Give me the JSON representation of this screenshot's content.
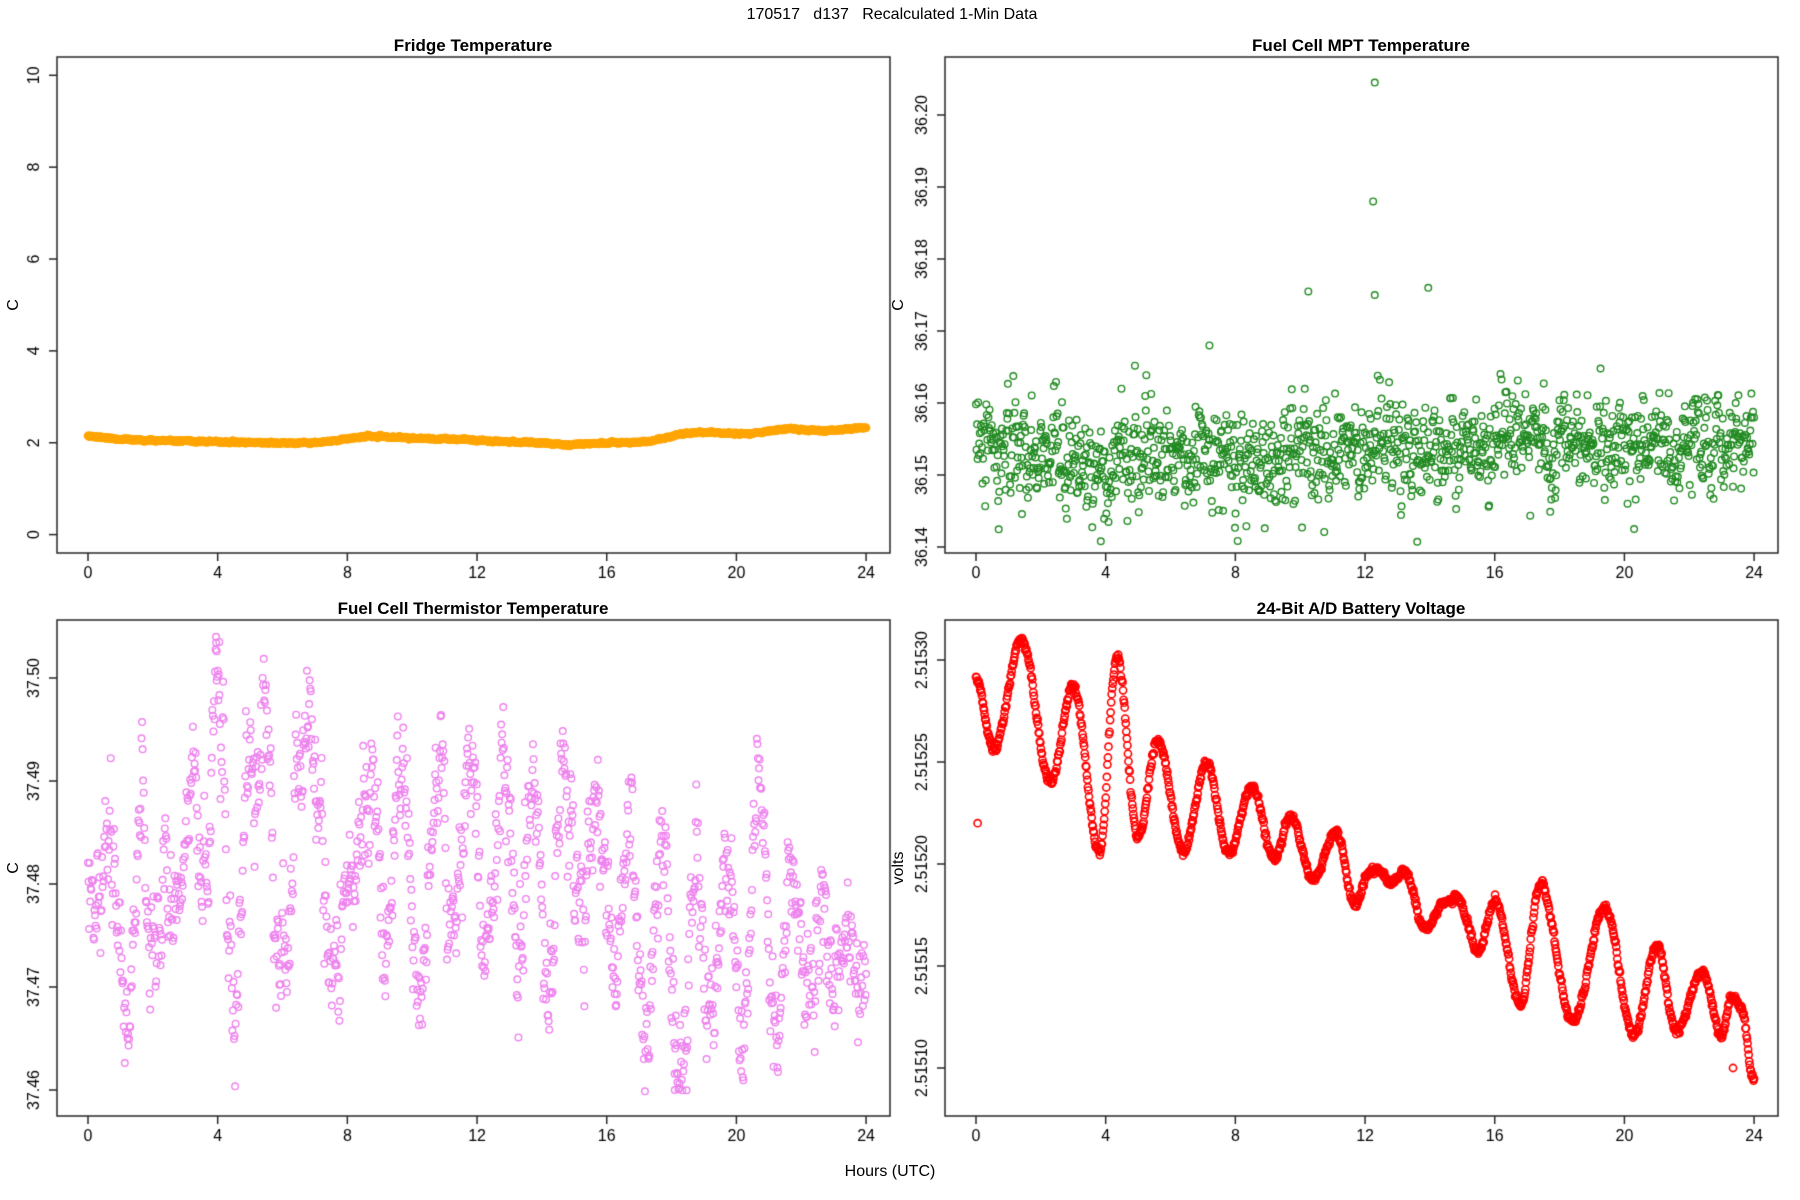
{
  "figure_title": "170517   d137   Recalculated 1-Min Data",
  "x_axis": {
    "label": "Hours (UTC)",
    "ticks": [
      "0",
      "4",
      "8",
      "12",
      "16",
      "20",
      "24"
    ],
    "tick_values": [
      0,
      4,
      8,
      12,
      16,
      20,
      24
    ],
    "range": [
      0,
      24
    ]
  },
  "chart_data": [
    {
      "type": "scatter",
      "title": "Fridge Temperature",
      "ylabel": "C",
      "color": "#FFA500",
      "marker": "open-circle",
      "n_points": 1440,
      "x_minutes": true,
      "ylim": [
        -0.4,
        10.4
      ],
      "y_ticks": [
        "0",
        "2",
        "4",
        "6",
        "8",
        "10"
      ],
      "y_tick_values": [
        0,
        2,
        4,
        6,
        8,
        10
      ],
      "noise": {
        "sd": 0.01,
        "autocorr": 0.5
      },
      "trace_keypoints": [
        [
          0,
          2.16
        ],
        [
          0.3,
          2.12
        ],
        [
          1,
          2.08
        ],
        [
          1.5,
          2.06
        ],
        [
          2,
          2.05
        ],
        [
          2.5,
          2.04
        ],
        [
          3,
          2.03
        ],
        [
          4,
          2.02
        ],
        [
          4.5,
          2.01
        ],
        [
          5,
          2.01
        ],
        [
          5.5,
          2.0
        ],
        [
          6,
          1.995
        ],
        [
          6.5,
          1.99
        ],
        [
          7,
          2.0
        ],
        [
          7.5,
          2.03
        ],
        [
          8,
          2.09
        ],
        [
          8.3,
          2.12
        ],
        [
          8.7,
          2.135
        ],
        [
          9,
          2.13
        ],
        [
          9.5,
          2.12
        ],
        [
          10,
          2.1
        ],
        [
          10.5,
          2.085
        ],
        [
          11,
          2.08
        ],
        [
          11.5,
          2.07
        ],
        [
          12,
          2.055
        ],
        [
          12.5,
          2.04
        ],
        [
          13,
          2.02
        ],
        [
          13.5,
          2.01
        ],
        [
          14,
          2.0
        ],
        [
          14.4,
          1.98
        ],
        [
          14.8,
          1.955
        ],
        [
          15.2,
          1.97
        ],
        [
          15.6,
          1.99
        ],
        [
          16,
          2.0
        ],
        [
          16.5,
          2.005
        ],
        [
          17,
          2.01
        ],
        [
          17.3,
          2.03
        ],
        [
          17.7,
          2.09
        ],
        [
          18,
          2.14
        ],
        [
          18.3,
          2.19
        ],
        [
          18.6,
          2.22
        ],
        [
          19,
          2.23
        ],
        [
          19.3,
          2.22
        ],
        [
          19.6,
          2.21
        ],
        [
          20,
          2.2
        ],
        [
          20.4,
          2.2
        ],
        [
          20.8,
          2.23
        ],
        [
          21.1,
          2.26
        ],
        [
          21.4,
          2.29
        ],
        [
          21.7,
          2.3
        ],
        [
          22,
          2.29
        ],
        [
          22.3,
          2.27
        ],
        [
          22.6,
          2.26
        ],
        [
          23,
          2.27
        ],
        [
          23.4,
          2.3
        ],
        [
          23.7,
          2.32
        ],
        [
          24,
          2.33
        ]
      ],
      "outliers": []
    },
    {
      "type": "scatter",
      "title": "Fuel Cell MPT Temperature",
      "ylabel": "C",
      "color": "#228B22",
      "marker": "open-circle",
      "n_points": 1440,
      "ylim": [
        36.138,
        36.208
      ],
      "y_ticks": [
        "36.14",
        "36.15",
        "36.16",
        "36.17",
        "36.18",
        "36.19",
        "36.20"
      ],
      "y_tick_values": [
        36.14,
        36.15,
        36.16,
        36.17,
        36.18,
        36.19,
        36.2
      ],
      "noise": {
        "sd": 0.0034,
        "autocorr": 0.35,
        "low_tail": 0.004
      },
      "clip": [
        36.1405,
        36.1655
      ],
      "trace_keypoints": [
        [
          0,
          36.1535
        ],
        [
          1,
          36.154
        ],
        [
          2,
          36.153
        ],
        [
          3,
          36.1508
        ],
        [
          3.9,
          36.1492
        ],
        [
          4.5,
          36.1535
        ],
        [
          5,
          36.1528
        ],
        [
          6,
          36.1522
        ],
        [
          7,
          36.1532
        ],
        [
          8,
          36.1526
        ],
        [
          9,
          36.1522
        ],
        [
          10,
          36.1538
        ],
        [
          11,
          36.1532
        ],
        [
          12,
          36.1542
        ],
        [
          13,
          36.1536
        ],
        [
          14,
          36.1532
        ],
        [
          15,
          36.1538
        ],
        [
          16,
          36.1542
        ],
        [
          17,
          36.1538
        ],
        [
          18,
          36.1548
        ],
        [
          19,
          36.1552
        ],
        [
          20,
          36.1542
        ],
        [
          21,
          36.1548
        ],
        [
          22,
          36.1552
        ],
        [
          23,
          36.1548
        ],
        [
          24,
          36.1552
        ]
      ],
      "outliers": [
        [
          12.3,
          36.2045
        ],
        [
          12.25,
          36.188
        ],
        [
          10.25,
          36.1755
        ],
        [
          12.3,
          36.175
        ],
        [
          13.95,
          36.176
        ],
        [
          7.2,
          36.168
        ],
        [
          3.85,
          36.1408
        ],
        [
          20.3,
          36.1425
        ]
      ]
    },
    {
      "type": "scatter",
      "title": "Fuel Cell Thermistor Temperature",
      "ylabel": "C",
      "color": "#EE82EE",
      "marker": "open-circle",
      "n_points": 1440,
      "ylim": [
        37.4575,
        37.5056
      ],
      "y_ticks": [
        "37.46",
        "37.47",
        "37.48",
        "37.49",
        "37.50"
      ],
      "y_tick_values": [
        37.46,
        37.47,
        37.48,
        37.49,
        37.5
      ],
      "noise": {
        "sd": 0.0032,
        "autocorr": 0.55
      },
      "clip": [
        37.4598,
        37.5045
      ],
      "trace_keypoints": [
        [
          0,
          37.479
        ],
        [
          0.35,
          37.4815
        ],
        [
          0.7,
          37.4835
        ],
        [
          1.1,
          37.4725
        ],
        [
          1.35,
          37.468
        ],
        [
          1.6,
          37.489
        ],
        [
          1.9,
          37.4755
        ],
        [
          2.2,
          37.4775
        ],
        [
          2.5,
          37.4815
        ],
        [
          2.8,
          37.478
        ],
        [
          3.2,
          37.4915
        ],
        [
          3.6,
          37.4775
        ],
        [
          3.95,
          37.4985
        ],
        [
          4.15,
          37.4955
        ],
        [
          4.35,
          37.4745
        ],
        [
          4.6,
          37.4675
        ],
        [
          4.9,
          37.4915
        ],
        [
          5.2,
          37.4925
        ],
        [
          5.5,
          37.4965
        ],
        [
          5.8,
          37.4745
        ],
        [
          6.1,
          37.4715
        ],
        [
          6.5,
          37.4915
        ],
        [
          6.8,
          37.4955
        ],
        [
          7.15,
          37.4865
        ],
        [
          7.5,
          37.4695
        ],
        [
          7.8,
          37.4755
        ],
        [
          8.1,
          37.4825
        ],
        [
          8.5,
          37.4865
        ],
        [
          8.8,
          37.4905
        ],
        [
          9.2,
          37.4725
        ],
        [
          9.7,
          37.4925
        ],
        [
          10.2,
          37.4695
        ],
        [
          10.8,
          37.4905
        ],
        [
          11.3,
          37.4745
        ],
        [
          11.8,
          37.4935
        ],
        [
          12.3,
          37.4725
        ],
        [
          12.8,
          37.4915
        ],
        [
          13.3,
          37.4745
        ],
        [
          13.7,
          37.4895
        ],
        [
          14.2,
          37.4705
        ],
        [
          14.7,
          37.4895
        ],
        [
          15.2,
          37.4755
        ],
        [
          15.7,
          37.4885
        ],
        [
          16.2,
          37.4715
        ],
        [
          16.7,
          37.4865
        ],
        [
          17.2,
          37.4665
        ],
        [
          17.7,
          37.4835
        ],
        [
          18.2,
          37.4625
        ],
        [
          18.45,
          37.466
        ],
        [
          18.7,
          37.4815
        ],
        [
          19.2,
          37.4655
        ],
        [
          19.7,
          37.4825
        ],
        [
          20.2,
          37.4645
        ],
        [
          20.7,
          37.4895
        ],
        [
          21.2,
          37.4665
        ],
        [
          21.7,
          37.4815
        ],
        [
          22.2,
          37.4695
        ],
        [
          22.6,
          37.479
        ],
        [
          23,
          37.4675
        ],
        [
          23.4,
          37.4775
        ],
        [
          23.8,
          37.4665
        ],
        [
          24,
          37.471
        ]
      ],
      "outliers": [
        [
          18.1,
          37.46
        ],
        [
          3.95,
          37.504
        ],
        [
          3.97,
          37.5026
        ],
        [
          4.05,
          37.5035
        ]
      ]
    },
    {
      "type": "scatter",
      "title": "24-Bit A/D Battery Voltage",
      "ylabel": "volts",
      "color": "#FF0000",
      "marker": "open-circle",
      "n_points": 1440,
      "ylim": [
        2.515076,
        2.51532
      ],
      "y_ticks": [
        "2.51510",
        "2.51515",
        "2.51520",
        "2.51525",
        "2.51530"
      ],
      "y_tick_values": [
        2.5151,
        2.51515,
        2.5152,
        2.51525,
        2.5153
      ],
      "noise": {
        "sd": 1e-06,
        "autocorr": 0.3
      },
      "trace_keypoints": [
        [
          0,
          2.51529
        ],
        [
          0.55,
          2.515256
        ],
        [
          1.4,
          2.51531
        ],
        [
          2.3,
          2.51524
        ],
        [
          3,
          2.515287
        ],
        [
          3.8,
          2.515206
        ],
        [
          4.35,
          2.515301
        ],
        [
          5,
          2.515213
        ],
        [
          5.6,
          2.51526
        ],
        [
          6.4,
          2.515206
        ],
        [
          7.1,
          2.515249
        ],
        [
          7.8,
          2.515205
        ],
        [
          8.5,
          2.515238
        ],
        [
          9.2,
          2.515203
        ],
        [
          9.7,
          2.515223
        ],
        [
          10.4,
          2.515192
        ],
        [
          11.1,
          2.515216
        ],
        [
          11.7,
          2.51518
        ],
        [
          12.1,
          2.515196
        ],
        [
          12.4,
          2.515197
        ],
        [
          12.8,
          2.515191
        ],
        [
          13.2,
          2.515196
        ],
        [
          13.9,
          2.515168
        ],
        [
          14.4,
          2.515181
        ],
        [
          14.8,
          2.515184
        ],
        [
          15.5,
          2.515158
        ],
        [
          16,
          2.515182
        ],
        [
          16.8,
          2.515131
        ],
        [
          17.4,
          2.51519
        ],
        [
          18.4,
          2.515123
        ],
        [
          19.4,
          2.515178
        ],
        [
          20.3,
          2.515116
        ],
        [
          21,
          2.51516
        ],
        [
          21.6,
          2.515118
        ],
        [
          22.4,
          2.515147
        ],
        [
          23,
          2.515116
        ],
        [
          23.3,
          2.515135
        ],
        [
          23.6,
          2.51513
        ],
        [
          24,
          2.515093
        ]
      ],
      "outliers": [
        [
          0.05,
          2.51522
        ],
        [
          23.35,
          2.5151
        ]
      ]
    }
  ]
}
